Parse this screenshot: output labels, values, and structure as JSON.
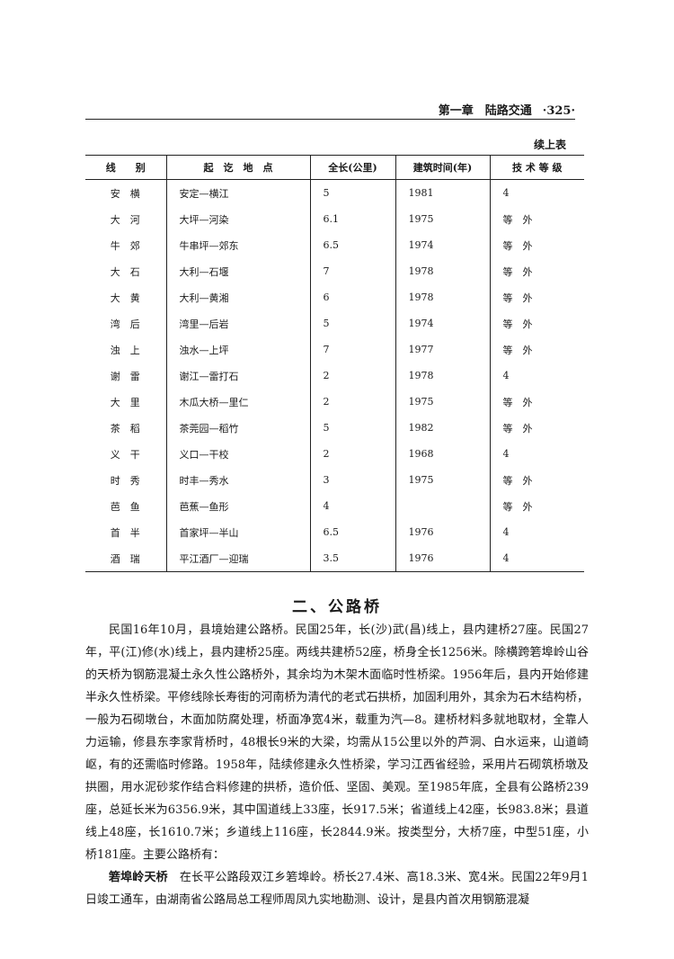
{
  "header": {
    "chapter": "第一章　陆路交通",
    "page": "·325·"
  },
  "table": {
    "caption": "续上表",
    "columns": [
      "线　　别",
      "起　讫　地　点",
      "全长(公里)",
      "建筑时间(年)",
      "技 术 等 级"
    ],
    "rows": [
      [
        "安　横",
        "安定—横江",
        5,
        1981,
        "4"
      ],
      [
        "大　河",
        "大坪—河染",
        6.1,
        1975,
        "等　外"
      ],
      [
        "牛　郊",
        "牛串坪—郊东",
        6.5,
        1974,
        "等　外"
      ],
      [
        "大　石",
        "大利—石堰",
        7,
        1978,
        "等　外"
      ],
      [
        "大　黄",
        "大利—黄湘",
        6,
        1978,
        "等　外"
      ],
      [
        "湾　后",
        "湾里—后岩",
        5,
        1974,
        "等　外"
      ],
      [
        "浊　上",
        "浊水—上坪",
        7,
        1977,
        "等　外"
      ],
      [
        "谢　雷",
        "谢江—雷打石",
        2,
        1978,
        "4"
      ],
      [
        "大　里",
        "木瓜大桥—里仁",
        2,
        1975,
        "等　外"
      ],
      [
        "茶　稻",
        "茶莞园—稻竹",
        5,
        1982,
        "等　外"
      ],
      [
        "义　干",
        "义口—干校",
        2,
        1968,
        "4"
      ],
      [
        "时　秀",
        "时丰—秀水",
        3,
        1975,
        "等　外"
      ],
      [
        "芭　鱼",
        "芭蕉—鱼形",
        4,
        null,
        "等　外"
      ],
      [
        "首　半",
        "首家坪—半山",
        6.5,
        1976,
        "4"
      ],
      [
        "酒　瑞",
        "平江酒厂—迎瑞",
        3.5,
        1976,
        "4"
      ]
    ]
  },
  "section": {
    "title": "二、公路桥",
    "paragraph": "民国16年10月，县境始建公路桥。民国25年，长(沙)武(昌)线上，县内建桥27座。民国27年，平(江)修(水)线上，县内建桥25座。两线共建桥52座，桥身全长1256米。除横跨箬埠岭山谷的天桥为钢筋混凝土永久性公路桥外，其余均为木架木面临时性桥梁。1956年后，县内开始修建半永久性桥梁。平修线除长寿街的河南桥为清代的老式石拱桥，加固利用外，其余为石木结构桥，一般为石砌墩台，木面加防腐处理，桥面净宽4米，载重为汽—8。建桥材料多就地取材，全靠人力运输，修县东李家背桥时，48根长9米的大梁，均需从15公里以外的芦洞、白水运来，山道崎岖，有的还需临时修路。1958年，陆续修建永久性桥梁，学习江西省经验，采用片石砌筑桥墩及拱圈，用水泥砂浆作结合料修建的拱桥，造价低、坚固、美观。至1985年底，全县有公路桥239座，总延长米为6356.9米，其中国道线上33座，长917.5米；省道线上42座，长983.8米；县道线上48座，长1610.7米；乡道线上116座，长2844.9米。按类型分，大桥7座，中型51座，小桥181座。主要公路桥有：",
    "bridge": {
      "name": "箬埠岭天桥",
      "text": "在长平公路段双江乡箬埠岭。桥长27.4米、高18.3米、宽4米。民国22年9月1日竣工通车，由湖南省公路局总工程师周凤九实地勘测、设计，是县内首次用钢筋混凝"
    }
  }
}
